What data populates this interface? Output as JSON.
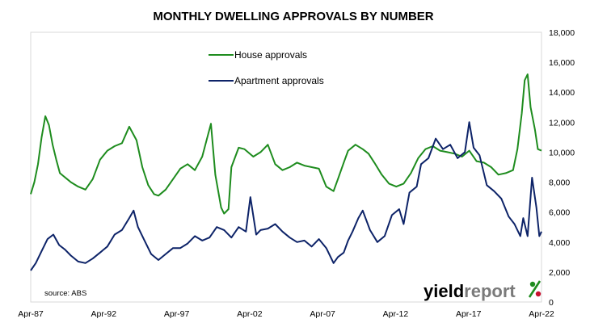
{
  "chart_data": {
    "type": "line",
    "title": "MONTHLY DWELLING APPROVALS BY NUMBER",
    "xlabel": "",
    "ylabel": "",
    "x_tick_labels": [
      "Apr-87",
      "Apr-92",
      "Apr-97",
      "Apr-02",
      "Apr-07",
      "Apr-12",
      "Apr-17",
      "Apr-22"
    ],
    "x_range": [
      1987.25,
      2022.25
    ],
    "y_tick_labels": [
      "0",
      "2,000",
      "4,000",
      "6,000",
      "8,000",
      "10,000",
      "12,000",
      "14,000",
      "16,000",
      "18,000"
    ],
    "ylim": [
      0,
      18000
    ],
    "y_axis_position": "right",
    "grid": false,
    "legend_position": "top-left",
    "series": [
      {
        "name": "House approvals",
        "color": "#1e8c1e",
        "x": [
          1987.25,
          1987.5,
          1987.75,
          1988.0,
          1988.25,
          1988.5,
          1988.75,
          1989.0,
          1989.25,
          1989.5,
          1989.75,
          1990.0,
          1990.5,
          1991.0,
          1991.5,
          1992.0,
          1992.5,
          1993.0,
          1993.5,
          1994.0,
          1994.5,
          1994.9,
          1995.3,
          1995.7,
          1996.0,
          1996.5,
          1997.0,
          1997.5,
          1998.0,
          1998.5,
          1999.0,
          1999.6,
          1999.9,
          2000.3,
          2000.5,
          2000.8,
          2001.0,
          2001.5,
          2001.9,
          2002.5,
          2003.0,
          2003.5,
          2004.0,
          2004.5,
          2005.0,
          2005.5,
          2006.0,
          2006.5,
          2007.0,
          2007.5,
          2008.0,
          2008.3,
          2008.7,
          2009.0,
          2009.5,
          2010.0,
          2010.4,
          2010.8,
          2011.3,
          2011.8,
          2012.3,
          2012.8,
          2013.3,
          2013.8,
          2014.3,
          2014.8,
          2015.3,
          2015.8,
          2016.3,
          2016.8,
          2017.3,
          2017.8,
          2018.3,
          2018.8,
          2019.3,
          2019.8,
          2020.3,
          2020.6,
          2020.9,
          2021.1,
          2021.3,
          2021.5,
          2021.8,
          2022.0,
          2022.25
        ],
        "values": [
          7200,
          8000,
          9200,
          11000,
          12400,
          11800,
          10500,
          9500,
          8600,
          8400,
          8200,
          8000,
          7700,
          7500,
          8200,
          9500,
          10100,
          10400,
          10600,
          11700,
          10800,
          9000,
          7800,
          7200,
          7100,
          7500,
          8200,
          8900,
          9200,
          8800,
          9700,
          11900,
          8500,
          6300,
          5900,
          6200,
          9000,
          10300,
          10200,
          9700,
          10000,
          10500,
          9200,
          8800,
          9000,
          9300,
          9100,
          9000,
          8900,
          7700,
          7400,
          8200,
          9300,
          10100,
          10500,
          10200,
          9900,
          9300,
          8500,
          7900,
          7700,
          7900,
          8600,
          9600,
          10200,
          10400,
          10100,
          10000,
          9900,
          9700,
          10100,
          9400,
          9300,
          9000,
          8500,
          8600,
          8800,
          10200,
          12600,
          14800,
          15200,
          13000,
          11500,
          10200,
          10100
        ]
      },
      {
        "name": "Apartment approvals",
        "color": "#0d2368",
        "x": [
          1987.25,
          1987.6,
          1988.0,
          1988.4,
          1988.8,
          1989.2,
          1989.6,
          1990.0,
          1990.5,
          1991.0,
          1991.5,
          1992.0,
          1992.5,
          1993.0,
          1993.5,
          1994.0,
          1994.3,
          1994.6,
          1995.0,
          1995.5,
          1996.0,
          1996.5,
          1997.0,
          1997.5,
          1998.0,
          1998.5,
          1999.0,
          1999.5,
          2000.0,
          2000.5,
          2001.0,
          2001.5,
          2002.0,
          2002.3,
          2002.7,
          2003.0,
          2003.5,
          2004.0,
          2004.5,
          2005.0,
          2005.5,
          2006.0,
          2006.5,
          2007.0,
          2007.5,
          2008.0,
          2008.3,
          2008.7,
          2009.0,
          2009.3,
          2009.7,
          2010.0,
          2010.5,
          2011.0,
          2011.5,
          2012.0,
          2012.5,
          2012.8,
          2013.2,
          2013.7,
          2014.0,
          2014.5,
          2015.0,
          2015.5,
          2016.0,
          2016.5,
          2017.0,
          2017.3,
          2017.6,
          2018.0,
          2018.5,
          2019.0,
          2019.5,
          2020.0,
          2020.4,
          2020.8,
          2021.0,
          2021.3,
          2021.6,
          2021.9,
          2022.1,
          2022.25
        ],
        "values": [
          2100,
          2600,
          3400,
          4200,
          4500,
          3800,
          3500,
          3100,
          2700,
          2600,
          2900,
          3300,
          3700,
          4500,
          4800,
          5600,
          6100,
          5000,
          4200,
          3200,
          2800,
          3200,
          3600,
          3600,
          3900,
          4400,
          4100,
          4300,
          5000,
          4800,
          4300,
          5000,
          4700,
          7000,
          4500,
          4800,
          4900,
          5200,
          4700,
          4300,
          4000,
          4100,
          3700,
          4200,
          3600,
          2600,
          3000,
          3300,
          4100,
          4700,
          5600,
          6100,
          4800,
          4000,
          4400,
          5800,
          6200,
          5200,
          7300,
          7700,
          9200,
          9600,
          10900,
          10200,
          10500,
          9600,
          10000,
          12000,
          10300,
          9800,
          7800,
          7400,
          6900,
          5700,
          5200,
          4400,
          5600,
          4400,
          8300,
          6300,
          4400,
          4700
        ]
      }
    ],
    "source_label": "source: ABS",
    "brand": {
      "word1": "yield",
      "word2": "report",
      "symbol": "%",
      "color_word1": "#000000",
      "color_word2": "#7a7a7a",
      "color_symbol_top": "#1e8c1e",
      "color_symbol_bottom": "#c8102e"
    }
  }
}
